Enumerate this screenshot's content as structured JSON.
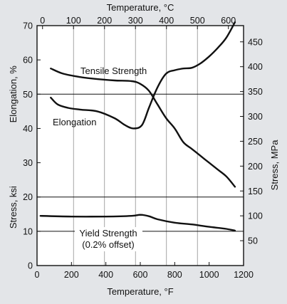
{
  "chart_data": {
    "type": "line",
    "colors": {
      "background": "#e3e5e8",
      "plot": "#ffffff",
      "ink": "#111111",
      "grid": "#8f8f8f"
    },
    "axes": {
      "x_bottom": {
        "label": "Temperature, °F",
        "range": [
          0,
          1200
        ],
        "ticks": [
          0,
          200,
          400,
          600,
          800,
          1000,
          1200
        ]
      },
      "x_top": {
        "label": "Temperature, °C",
        "range": [
          -17.8,
          648.9
        ],
        "ticks": [
          0,
          100,
          200,
          300,
          400,
          500,
          600
        ]
      },
      "y_left_upper": {
        "label": "Elongation, %",
        "range": [
          0,
          70
        ],
        "ticks": [
          30,
          40,
          50,
          60,
          70
        ]
      },
      "y_left_lower": {
        "label": "Stress, ksi",
        "range": [
          0,
          70
        ],
        "ticks": [
          0,
          10,
          20
        ]
      },
      "y_right": {
        "label": "Stress, MPa",
        "range": [
          0,
          482.6
        ],
        "ticks": [
          50,
          100,
          150,
          200,
          250,
          300,
          350,
          400,
          450
        ]
      }
    },
    "grid": {
      "vertical_lines_at_celsius": [
        100,
        200,
        300,
        400,
        500
      ],
      "horizontal_lines_at": [
        20,
        10,
        50
      ]
    },
    "series": [
      {
        "name": "Tensile Strength",
        "x": [
          80,
          150,
          250,
          350,
          450,
          550,
          600,
          650,
          700,
          750,
          800,
          850,
          900,
          950,
          1000,
          1050,
          1100,
          1150
        ],
        "y": [
          57.5,
          56,
          55,
          54.4,
          54,
          53.8,
          53,
          51,
          47,
          43,
          40,
          36,
          34,
          32,
          30,
          28,
          26,
          23
        ]
      },
      {
        "name": "Elongation",
        "x": [
          80,
          120,
          180,
          250,
          350,
          450,
          510,
          560,
          610,
          650,
          700,
          750,
          800,
          850,
          900,
          950,
          1000,
          1050,
          1100,
          1150
        ],
        "y": [
          49,
          47,
          46,
          45.5,
          45,
          43,
          41,
          40,
          41,
          46,
          52,
          56,
          57,
          57.5,
          57.7,
          59,
          61,
          63.5,
          66.5,
          71
        ]
      },
      {
        "name": "Yield Strength",
        "x": [
          20,
          200,
          400,
          550,
          600,
          650,
          700,
          800,
          900,
          1000,
          1100,
          1150
        ],
        "y": [
          14.5,
          14.3,
          14.3,
          14.5,
          14.8,
          14.4,
          13.5,
          12.5,
          12,
          11.3,
          10.7,
          10.2
        ]
      }
    ],
    "annotations": {
      "tensile": "Tensile Strength",
      "elongation": "Elongation",
      "yield_line1": "Yield Strength",
      "yield_line2": "(0.2% offset)"
    }
  }
}
